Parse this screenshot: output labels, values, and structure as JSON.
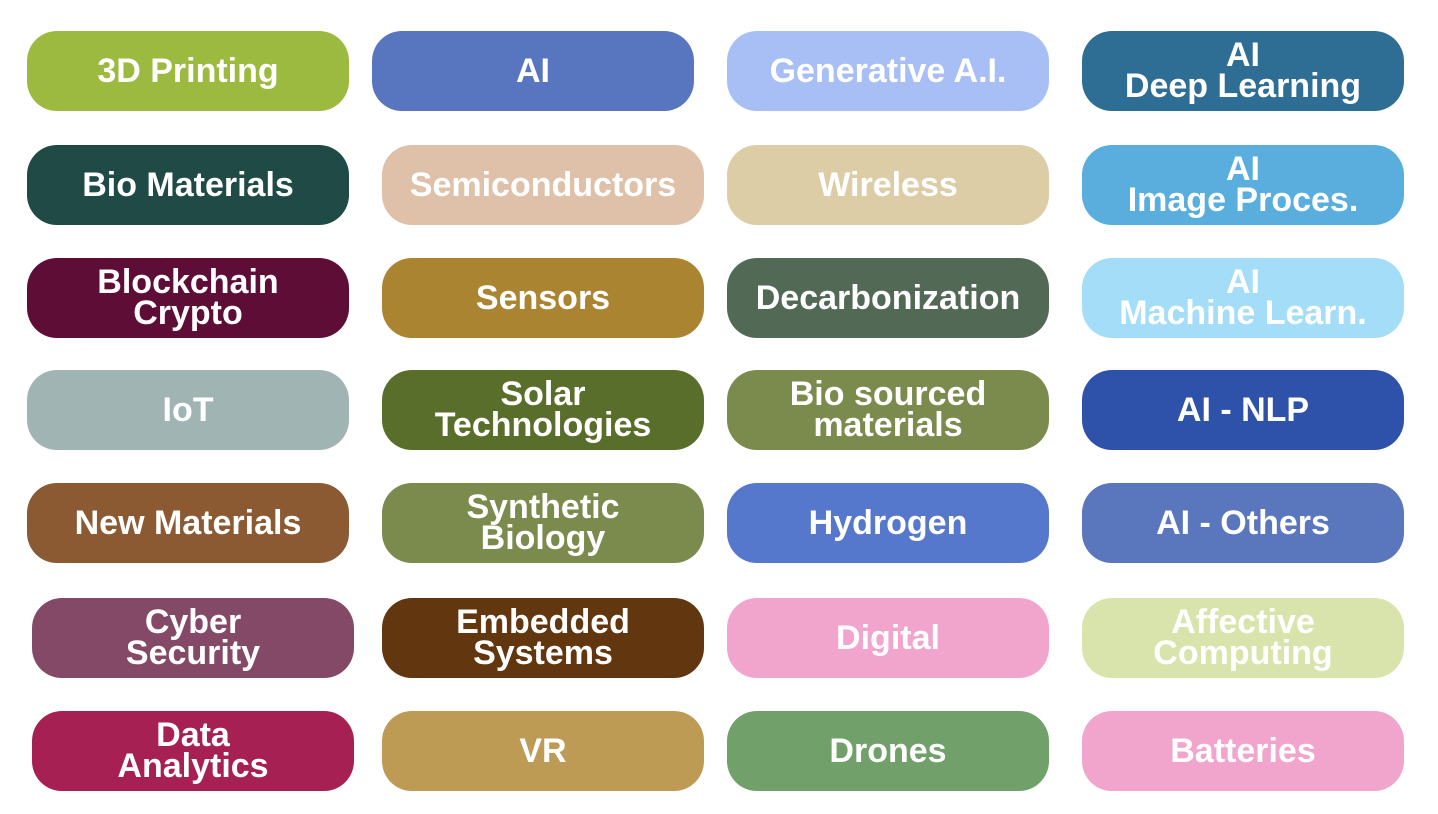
{
  "tiles": [
    {
      "lines": [
        "3D Printing"
      ],
      "color": "#9cba3f"
    },
    {
      "lines": [
        "AI"
      ],
      "color": "#5876bf"
    },
    {
      "lines": [
        "Generative A.I."
      ],
      "color": "#a8bff5"
    },
    {
      "lines": [
        "AI",
        "Deep Learning"
      ],
      "color": "#2e6d94"
    },
    {
      "lines": [
        "Bio Materials"
      ],
      "color": "#1f4a46"
    },
    {
      "lines": [
        "Semiconductors"
      ],
      "color": "#dfc0a8"
    },
    {
      "lines": [
        "Wireless"
      ],
      "color": "#dccda6"
    },
    {
      "lines": [
        "AI",
        "Image Proces."
      ],
      "color": "#59aede"
    },
    {
      "lines": [
        "Blockchain",
        "Crypto"
      ],
      "color": "#5e0e36"
    },
    {
      "lines": [
        "Sensors"
      ],
      "color": "#ab8431"
    },
    {
      "lines": [
        "Decarbonization"
      ],
      "color": "#526955"
    },
    {
      "lines": [
        "AI",
        "Machine Learn."
      ],
      "color": "#a4ddf7"
    },
    {
      "lines": [
        "IoT"
      ],
      "color": "#a0b4b4"
    },
    {
      "lines": [
        "Solar",
        "Technologies"
      ],
      "color": "#5a6e2b"
    },
    {
      "lines": [
        "Bio sourced",
        "materials"
      ],
      "color": "#7b8a4d"
    },
    {
      "lines": [
        "AI - NLP"
      ],
      "color": "#2e51a9"
    },
    {
      "lines": [
        "New Materials"
      ],
      "color": "#8b5a33"
    },
    {
      "lines": [
        "Synthetic",
        "Biology"
      ],
      "color": "#7b8a4d"
    },
    {
      "lines": [
        "Hydrogen"
      ],
      "color": "#5577cc"
    },
    {
      "lines": [
        "AI - Others"
      ],
      "color": "#5a76bd"
    },
    {
      "lines": [
        "Cyber",
        "Security"
      ],
      "color": "#844966"
    },
    {
      "lines": [
        "Embedded",
        "Systems"
      ],
      "color": "#62360f"
    },
    {
      "lines": [
        "Digital"
      ],
      "color": "#f1a5cc"
    },
    {
      "lines": [
        "Affective",
        "Computing"
      ],
      "color": "#d9e4ad"
    },
    {
      "lines": [
        "Data",
        "Analytics"
      ],
      "color": "#a72054"
    },
    {
      "lines": [
        "VR"
      ],
      "color": "#be9b55"
    },
    {
      "lines": [
        "Drones"
      ],
      "color": "#71a06a"
    },
    {
      "lines": [
        "Batteries"
      ],
      "color": "#f1a5cc"
    }
  ]
}
